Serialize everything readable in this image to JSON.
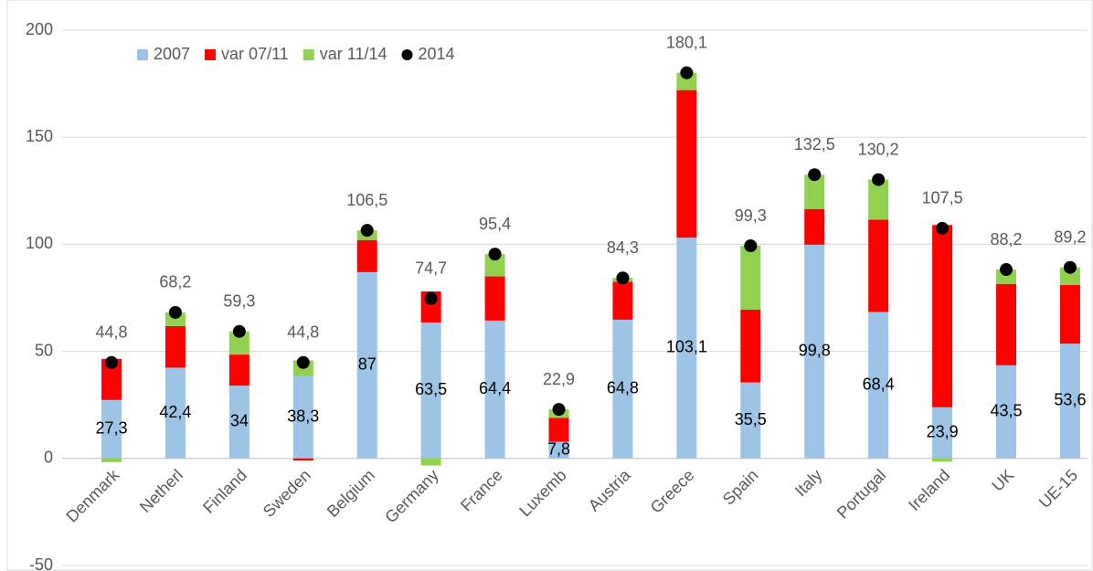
{
  "chart_data": {
    "type": "bar",
    "stacked": true,
    "categories": [
      "Denmark",
      "Netherl",
      "Finland",
      "Sweden",
      "Belgium",
      "Germany",
      "France",
      "Luxemb",
      "Austria",
      "Greece",
      "Spain",
      "Italy",
      "Portugal",
      "Ireland",
      "UK",
      "UE-15"
    ],
    "series": [
      {
        "name": "2007",
        "type": "bar",
        "color": "#9dc3e6",
        "values": [
          27.3,
          42.4,
          34,
          38.3,
          87,
          63.5,
          64.4,
          7.8,
          64.8,
          103.1,
          35.5,
          99.8,
          68.4,
          23.9,
          43.5,
          53.6
        ],
        "value_labels": [
          "27,3",
          "42,4",
          "34",
          "38,3",
          "87",
          "63,5",
          "64,4",
          "7,8",
          "64,8",
          "103,1",
          "35,5",
          "99,8",
          "68,4",
          "23,9",
          "43,5",
          "53,6"
        ]
      },
      {
        "name": "var 07/11",
        "type": "bar",
        "color": "#ff0000",
        "values": [
          19.2,
          19.4,
          14.5,
          -1.0,
          15,
          14.5,
          20.6,
          11.2,
          17.7,
          68.9,
          34,
          16.7,
          43.1,
          85.1,
          38,
          27.4
        ]
      },
      {
        "name": "var 11/14",
        "type": "bar",
        "color": "#92d050",
        "values": [
          -1.7,
          6.4,
          10.8,
          7.5,
          4.5,
          -3.3,
          10.4,
          3.9,
          1.8,
          8.1,
          29.8,
          16,
          18.7,
          -1.5,
          6.7,
          8.2
        ]
      },
      {
        "name": "2014",
        "type": "scatter",
        "color": "#000000",
        "values": [
          44.8,
          68.2,
          59.3,
          44.8,
          106.5,
          74.7,
          95.4,
          22.9,
          84.3,
          180.1,
          99.3,
          132.5,
          130.2,
          107.5,
          88.2,
          89.2
        ],
        "value_labels": [
          "44,8",
          "68,2",
          "59,3",
          "44,8",
          "106,5",
          "74,7",
          "95,4",
          "22,9",
          "84,3",
          "180,1",
          "99,3",
          "132,5",
          "130,2",
          "107,5",
          "88,2",
          "89,2"
        ]
      }
    ],
    "ylim": [
      -50,
      200
    ],
    "yticks": [
      -50,
      0,
      50,
      100,
      150,
      200
    ],
    "grid": true,
    "legend": "top-left"
  }
}
